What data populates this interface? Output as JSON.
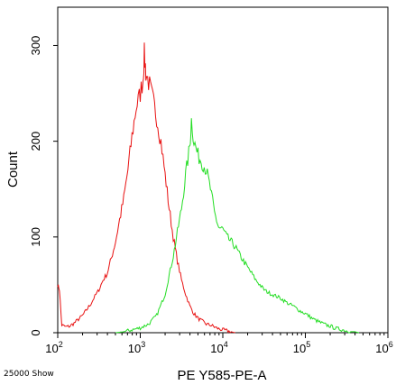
{
  "chart_data": {
    "type": "line",
    "title": "",
    "xlabel": "PE Y585-PE-A",
    "ylabel": "Count",
    "x_scale": "log",
    "xlim": [
      100,
      1000000
    ],
    "ylim": [
      0,
      340
    ],
    "y_ticks": [
      0,
      100,
      200,
      300
    ],
    "x_ticks": [
      {
        "base": "10",
        "exp": "2",
        "value": 100
      },
      {
        "base": "10",
        "exp": "3",
        "value": 1000
      },
      {
        "base": "10",
        "exp": "4",
        "value": 10000
      },
      {
        "base": "10",
        "exp": "5",
        "value": 100000
      },
      {
        "base": "10",
        "exp": "6",
        "value": 1000000
      }
    ],
    "footnote": "25000 Show",
    "grid": false,
    "legend": "none",
    "series": [
      {
        "color": "#e81010",
        "points": [
          [
            100,
            50
          ],
          [
            105,
            45
          ],
          [
            112,
            8
          ],
          [
            126,
            6
          ],
          [
            141,
            7
          ],
          [
            158,
            10
          ],
          [
            178,
            14
          ],
          [
            200,
            18
          ],
          [
            224,
            24
          ],
          [
            251,
            30
          ],
          [
            282,
            38
          ],
          [
            316,
            45
          ],
          [
            355,
            55
          ],
          [
            398,
            62
          ],
          [
            447,
            78
          ],
          [
            501,
            95
          ],
          [
            562,
            118
          ],
          [
            631,
            140
          ],
          [
            708,
            170
          ],
          [
            794,
            205
          ],
          [
            891,
            235
          ],
          [
            1000,
            250
          ],
          [
            1080,
            265
          ],
          [
            1120,
            290
          ],
          [
            1170,
            272
          ],
          [
            1260,
            262
          ],
          [
            1410,
            245
          ],
          [
            1580,
            225
          ],
          [
            1780,
            200
          ],
          [
            2000,
            165
          ],
          [
            2240,
            130
          ],
          [
            2510,
            100
          ],
          [
            2820,
            75
          ],
          [
            3160,
            55
          ],
          [
            3550,
            40
          ],
          [
            3980,
            28
          ],
          [
            4470,
            20
          ],
          [
            5010,
            15
          ],
          [
            5620,
            12
          ],
          [
            6310,
            9
          ],
          [
            7080,
            8
          ],
          [
            7940,
            6
          ],
          [
            8910,
            4
          ],
          [
            10000,
            3
          ],
          [
            11200,
            2
          ],
          [
            12600,
            1
          ],
          [
            14100,
            0
          ]
        ]
      },
      {
        "color": "#22dd22",
        "points": [
          [
            501,
            0
          ],
          [
            631,
            1
          ],
          [
            794,
            3
          ],
          [
            1000,
            5
          ],
          [
            1260,
            9
          ],
          [
            1580,
            18
          ],
          [
            2000,
            40
          ],
          [
            2240,
            60
          ],
          [
            2510,
            80
          ],
          [
            2820,
            105
          ],
          [
            3160,
            130
          ],
          [
            3550,
            165
          ],
          [
            3980,
            195
          ],
          [
            4170,
            222
          ],
          [
            4470,
            200
          ],
          [
            5010,
            185
          ],
          [
            5620,
            178
          ],
          [
            6310,
            170
          ],
          [
            7080,
            150
          ],
          [
            7940,
            125
          ],
          [
            8910,
            110
          ],
          [
            10000,
            108
          ],
          [
            11200,
            100
          ],
          [
            12600,
            95
          ],
          [
            14100,
            90
          ],
          [
            15800,
            82
          ],
          [
            17800,
            75
          ],
          [
            20000,
            68
          ],
          [
            22400,
            62
          ],
          [
            25100,
            55
          ],
          [
            28200,
            50
          ],
          [
            31600,
            45
          ],
          [
            35500,
            42
          ],
          [
            39800,
            40
          ],
          [
            44700,
            38
          ],
          [
            50100,
            36
          ],
          [
            56200,
            33
          ],
          [
            63100,
            30
          ],
          [
            70800,
            28
          ],
          [
            79400,
            25
          ],
          [
            89100,
            22
          ],
          [
            100000,
            20
          ],
          [
            112000,
            17
          ],
          [
            126000,
            14
          ],
          [
            141000,
            12
          ],
          [
            158000,
            10
          ],
          [
            178000,
            8
          ],
          [
            200000,
            7
          ],
          [
            224000,
            5
          ],
          [
            251000,
            4
          ],
          [
            282000,
            3
          ],
          [
            316000,
            2
          ],
          [
            355000,
            1
          ],
          [
            398000,
            1
          ],
          [
            447000,
            0
          ]
        ]
      }
    ]
  }
}
